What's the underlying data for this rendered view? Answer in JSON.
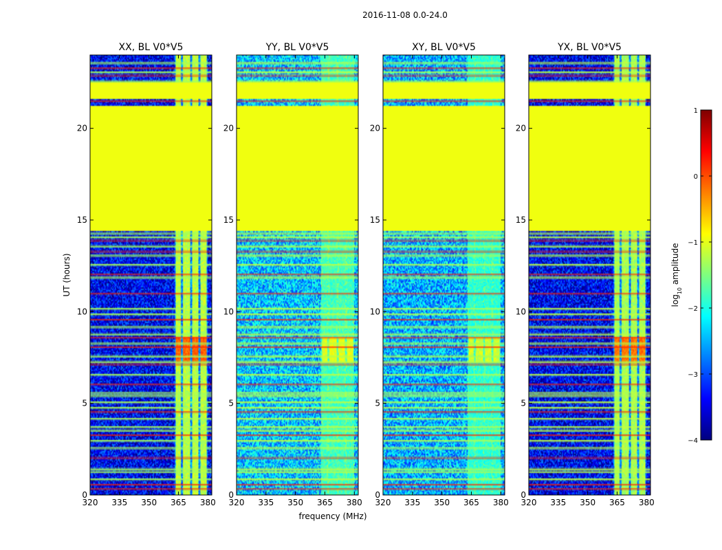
{
  "chart_data": {
    "type": "heatmap",
    "suptitle": "2016-11-08 0.0-24.0",
    "xlabel": "frequency (MHz)",
    "ylabel": "UT (hours)",
    "xlim": [
      320,
      382
    ],
    "ylim": [
      0,
      24
    ],
    "xticks": [
      320,
      335,
      350,
      365,
      380
    ],
    "yticks": [
      0,
      5,
      10,
      15,
      20
    ],
    "colorbar": {
      "label": "log",
      "label_sub": "10",
      "label_rest": " amplitude",
      "ticks": [
        1,
        0,
        -1,
        -2,
        -3,
        -4
      ],
      "tick_labels": [
        "1",
        "0",
        "−1",
        "−2",
        "−3",
        "−4"
      ],
      "range": [
        -4,
        1
      ],
      "colormap": [
        "#00007f",
        "#0000ff",
        "#007fff",
        "#00ffff",
        "#7fff7f",
        "#ffff00",
        "#ff7f00",
        "#ff0000",
        "#7f0000"
      ]
    },
    "flagged_value": -0.95,
    "flagged_ut_ranges": [
      [
        14.5,
        21.2
      ],
      [
        21.6,
        22.5
      ]
    ],
    "bright_band_mhz": [
      363,
      380
    ],
    "panels": [
      {
        "title": "XX, BL V0*V5",
        "base_level": -3.4,
        "band_level": -1.2,
        "band_peak": -0.1
      },
      {
        "title": "YY, BL V0*V5",
        "base_level": -2.4,
        "band_level": -1.8,
        "band_peak": -1.0
      },
      {
        "title": "XY, BL V0*V5",
        "base_level": -2.5,
        "band_level": -1.9,
        "band_peak": -1.1
      },
      {
        "title": "YX, BL V0*V5",
        "base_level": -3.4,
        "band_level": -1.3,
        "band_peak": -0.2
      }
    ]
  }
}
